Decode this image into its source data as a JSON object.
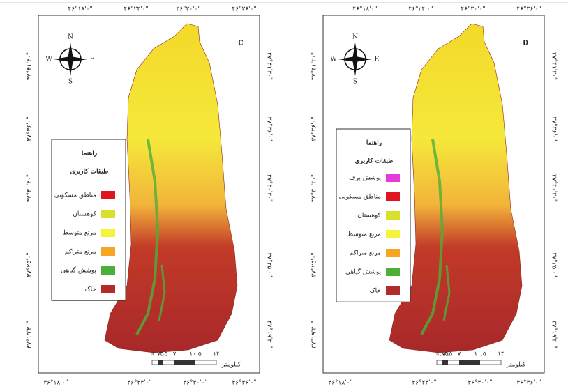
{
  "panels": [
    {
      "label": "C",
      "top_coords": [
        "۴۶°۱۸'۰\"",
        "۴۶°۲۴'۰\"",
        "۴۶°۳۰'۰\"",
        "۴۶°۳۶'۰\""
      ],
      "bottom_coords": [
        "۴۶°۱۸'۰\"",
        "۴۶°۲۴'۰\"",
        "۴۶°۳۰'۰\"",
        "۴۶°۳۶'۰\""
      ],
      "left_coords": [
        "۳۷°۴۱'۳۰\"",
        "۳۷°۳۶'۰\"",
        "۳۷°۳۰'۳۰\"",
        "۳۷°۲۵'۰\"",
        "۳۷°۱۹'۳۰\""
      ],
      "right_coords": [
        "۳۷°۴۱'۳۰\"",
        "۳۷°۳۶'۰\"",
        "۳۷°۳۰'۳۰\"",
        "۳۷°۲۵'۰\"",
        "۳۷°۱۹'۳۰\""
      ],
      "compass": {
        "n": "N",
        "s": "S",
        "e": "E",
        "w": "W"
      },
      "legend": {
        "title": "راهنما",
        "subtitle": "طبقات کاربری",
        "items": [
          {
            "label": "مناطق مسکونی",
            "color": "#e0141e"
          },
          {
            "label": "کوهستان",
            "color": "#d8e02a"
          },
          {
            "label": "مرتع متوسط",
            "color": "#f7f23a"
          },
          {
            "label": "مرتع متراکم",
            "color": "#f5a623"
          },
          {
            "label": "پوشش گیاهی",
            "color": "#4caf3a"
          },
          {
            "label": "خاک",
            "color": "#b22a2a"
          }
        ]
      },
      "scale": {
        "ticks": [
          "۰",
          "۱.۷۵",
          "۳.۵",
          "۷",
          "۱۰.۵",
          "۱۴"
        ],
        "unit": "کیلومتر"
      }
    },
    {
      "label": "D",
      "top_coords": [
        "۴۶°۱۸'۰\"",
        "۴۶°۲۴'۰\"",
        "۴۶°۳۰'۰\"",
        "۴۶°۳۶'۰\""
      ],
      "bottom_coords": [
        "۴۶°۱۸'۰\"",
        "۴۶°۲۴'۰\"",
        "۴۶°۳۰'۰\"",
        "۴۶°۳۶'۰\""
      ],
      "left_coords": [
        "۳۷°۴۱'۳۰\"",
        "۳۷°۳۶'۰\"",
        "۳۷°۳۰'۳۰\"",
        "۳۷°۲۵'۰\"",
        "۳۷°۱۹'۳۰\""
      ],
      "right_coords": [
        "۳۷°۴۱'۳۰\"",
        "۳۷°۳۶'۰\"",
        "۳۷°۳۰'۳۰\"",
        "۳۷°۲۵'۰\"",
        "۳۷°۱۹'۳۰\""
      ],
      "compass": {
        "n": "N",
        "s": "S",
        "e": "E",
        "w": "W"
      },
      "legend": {
        "title": "راهنما",
        "subtitle": "طبقات کاربری",
        "items": [
          {
            "label": "پوشش برف",
            "color": "#e83ad8"
          },
          {
            "label": "مناطق مسکونی",
            "color": "#e0141e"
          },
          {
            "label": "کوهستان",
            "color": "#d8e02a"
          },
          {
            "label": "مرتع متوسط",
            "color": "#f7f23a"
          },
          {
            "label": "مرتع متراکم",
            "color": "#f5a623"
          },
          {
            "label": "پوشش گیاهی",
            "color": "#4caf3a"
          },
          {
            "label": "خاک",
            "color": "#b22a2a"
          }
        ]
      },
      "scale": {
        "ticks": [
          "۰",
          "۱.۷۵",
          "۳.۵",
          "۷",
          "۱۰.۵",
          "۱۴"
        ],
        "unit": "کیلومتر"
      }
    }
  ]
}
